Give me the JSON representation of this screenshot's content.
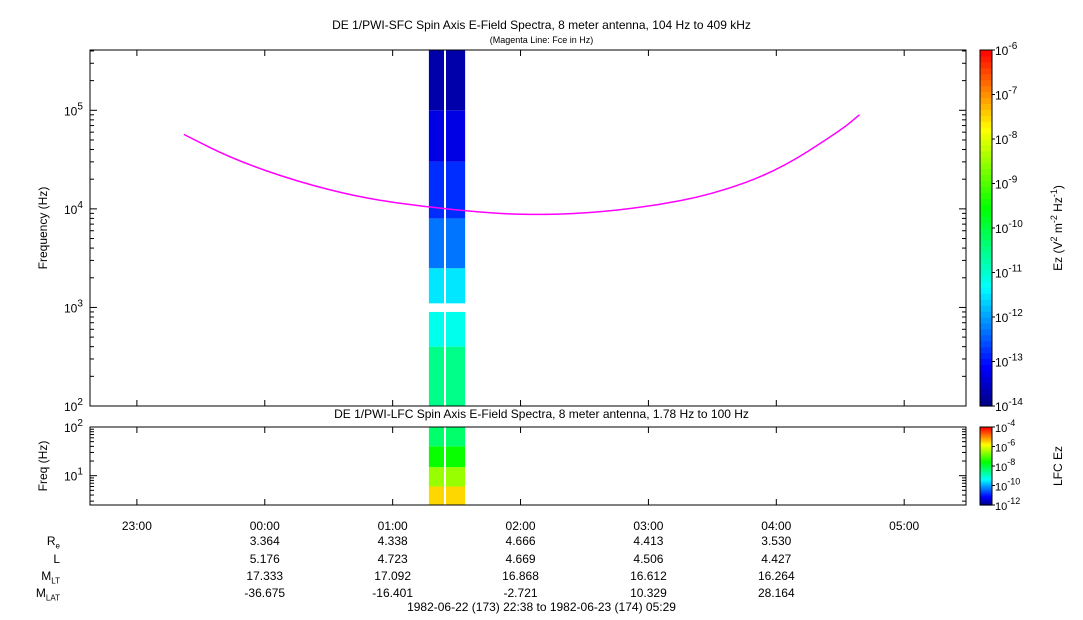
{
  "titles": {
    "sfc": "DE 1/PWI-SFC  Spin Axis E-Field Spectra, 8 meter antenna, 104 Hz to 409 kHz",
    "sfc_sub": "(Magenta Line: Fce in Hz)",
    "lfc": "DE 1/PWI-LFC  Spin Axis E-Field Spectra, 8 meter antenna, 1.78 Hz to 100 Hz",
    "time_range": "1982-06-22 (173) 22:38 to 1982-06-23 (174) 05:29"
  },
  "colors": {
    "fce_line": "#ff00ff",
    "colormap": [
      "#000080",
      "#0000ff",
      "#0080ff",
      "#00ffff",
      "#00ff80",
      "#00ff00",
      "#80ff00",
      "#ffff00",
      "#ff8000",
      "#ff0000"
    ]
  },
  "chart_data": [
    {
      "type": "heatmap",
      "name": "SFC",
      "xlabel": "",
      "ylabel": "Frequency (Hz)",
      "y_scale": "log",
      "ylim": [
        100,
        409000
      ],
      "xlim": [
        "22:38",
        "05:29"
      ],
      "ytick_labels": [
        "10^2",
        "10^3",
        "10^4",
        "10^5"
      ],
      "colorbar": {
        "label": "Ez (V^2 m^-2 Hz^-1)",
        "scale": "log",
        "range": [
          1e-14,
          1e-06
        ],
        "tick_labels": [
          "10^-14",
          "10^-13",
          "10^-12",
          "10^-11",
          "10^-10",
          "10^-9",
          "10^-8",
          "10^-7",
          "10^-6"
        ]
      },
      "data_interval": {
        "start": "01:17",
        "end": "01:34"
      },
      "log_intensity_bands": [
        {
          "fmin": 100,
          "fmax": 400,
          "level": -10.5
        },
        {
          "fmin": 400,
          "fmax": 900,
          "level": -11.2
        },
        {
          "fmin": 1100,
          "fmax": 2500,
          "level": -11.5
        },
        {
          "fmin": 2500,
          "fmax": 8000,
          "level": -12.3
        },
        {
          "fmin": 8000,
          "fmax": 30000,
          "level": -12.8
        },
        {
          "fmin": 30000,
          "fmax": 100000,
          "level": -13.3
        },
        {
          "fmin": 100000,
          "fmax": 409000,
          "level": -13.7
        }
      ],
      "fce_curve": {
        "x": [
          "23:22",
          "23:45",
          "00:15",
          "00:45",
          "01:15",
          "01:45",
          "02:05",
          "02:30",
          "03:00",
          "03:30",
          "04:00",
          "04:30",
          "04:39"
        ],
        "y": [
          57000,
          32000,
          19000,
          13000,
          10500,
          9100,
          8700,
          9000,
          10500,
          14000,
          24000,
          62000,
          90000
        ]
      }
    },
    {
      "type": "heatmap",
      "name": "LFC",
      "ylabel": "Freq (Hz)",
      "y_scale": "log",
      "ylim": [
        2.5,
        100
      ],
      "ytick_labels": [
        "10^1",
        "10^2"
      ],
      "colorbar": {
        "label": "LFC Ez",
        "scale": "log",
        "range": [
          1e-12,
          0.0001
        ],
        "tick_labels": [
          "10^-12",
          "10^-10",
          "10^-8",
          "10^-6",
          "10^-4"
        ]
      },
      "data_interval": {
        "start": "01:17",
        "end": "01:34"
      },
      "log_intensity_bands": [
        {
          "fmin": 2.5,
          "fmax": 6,
          "level": -5.5
        },
        {
          "fmin": 6,
          "fmax": 15,
          "level": -6.5
        },
        {
          "fmin": 15,
          "fmax": 40,
          "level": -7.5
        },
        {
          "fmin": 40,
          "fmax": 100,
          "level": -8.3
        }
      ]
    }
  ],
  "x_axis": {
    "tick_labels": [
      "23:00",
      "00:00",
      "01:00",
      "02:00",
      "03:00",
      "04:00",
      "05:00"
    ]
  },
  "ephemeris": {
    "labels": [
      "R",
      "L",
      "M",
      "M"
    ],
    "label_subs": [
      "e",
      "",
      "LT",
      "LAT"
    ],
    "times": [
      "00:00",
      "01:00",
      "02:00",
      "03:00",
      "04:00"
    ],
    "rows": [
      [
        "3.364",
        "4.338",
        "4.666",
        "4.413",
        "3.530"
      ],
      [
        "5.176",
        "4.723",
        "4.669",
        "4.506",
        "4.427"
      ],
      [
        "17.333",
        "17.092",
        "16.868",
        "16.612",
        "16.264"
      ],
      [
        "-36.675",
        "-16.401",
        "-2.721",
        "10.329",
        "28.164"
      ]
    ]
  }
}
